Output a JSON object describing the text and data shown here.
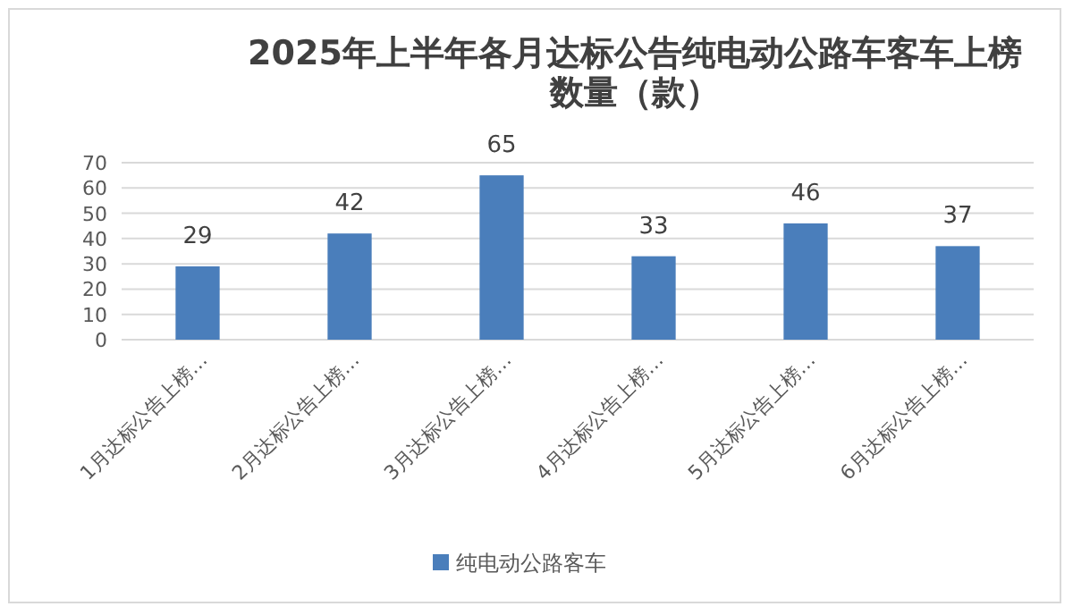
{
  "chart_data": {
    "type": "bar",
    "title": "2025年上半年各月达标公告纯电动公路车客车上榜数量（款）",
    "categories": [
      "1月达标公告上榜…",
      "2月达标公告上榜…",
      "3月达标公告上榜…",
      "4月达标公告上榜…",
      "5月达标公告上榜…",
      "6月达标公告上榜…"
    ],
    "series": [
      {
        "name": "纯电动公路客车",
        "color": "#4a7ebb",
        "values": [
          29,
          42,
          65,
          33,
          46,
          37
        ]
      }
    ],
    "ylim": [
      0,
      70
    ],
    "yticks": [
      0,
      10,
      20,
      30,
      40,
      50,
      60,
      70
    ],
    "grid": "y",
    "legend": "bottom",
    "data_labels": true
  }
}
